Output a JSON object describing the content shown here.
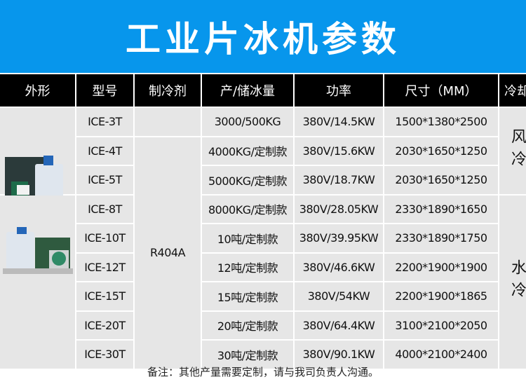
{
  "title": "工业片冰机参数",
  "headers": [
    "外形",
    "型号",
    "制冷剂",
    "产/储冰量",
    "功率",
    "尺寸（MM）",
    "冷却"
  ],
  "rows": [
    {
      "model": "ICE-3T",
      "capacity": "3000/500KG",
      "power": "380V/14.5KW",
      "size": "1500*1380*2500"
    },
    {
      "model": "ICE-4T",
      "capacity": "4000KG/定制款",
      "power": "380V/15.6KW",
      "size": "2030*1650*1250"
    },
    {
      "model": "ICE-5T",
      "capacity": "5000KG/定制款",
      "power": "380V/18.7KW",
      "size": "2030*1650*1250"
    },
    {
      "model": "ICE-8T",
      "capacity": "8000KG/定制款",
      "power": "380V/28.05KW",
      "size": "2330*1890*1650"
    },
    {
      "model": "ICE-10T",
      "capacity": "10吨/定制款",
      "power": "380V/39.95KW",
      "size": "2330*1890*1750"
    },
    {
      "model": "ICE-12T",
      "capacity": "12吨/定制款",
      "power": "380V/46.6KW",
      "size": "2200*1900*1900"
    },
    {
      "model": "ICE-15T",
      "capacity": "15吨/定制款",
      "power": "380V/54KW",
      "size": "2200*1900*1865"
    },
    {
      "model": "ICE-20T",
      "capacity": "20吨/定制款",
      "power": "380V/64.4KW",
      "size": "3100*2100*2050"
    },
    {
      "model": "ICE-30T",
      "capacity": "30吨/定制款",
      "power": "380V/90.1KW",
      "size": "4000*2100*2400"
    }
  ],
  "refrigerant": "R404A",
  "cooling": {
    "air": "风冷",
    "water": "水冷"
  },
  "note": "备注：其他产量需要定制，请与我司负责人沟通。",
  "colors": {
    "banner": "#0796ec",
    "header": "#000000",
    "cell": "#e6e6e6"
  }
}
